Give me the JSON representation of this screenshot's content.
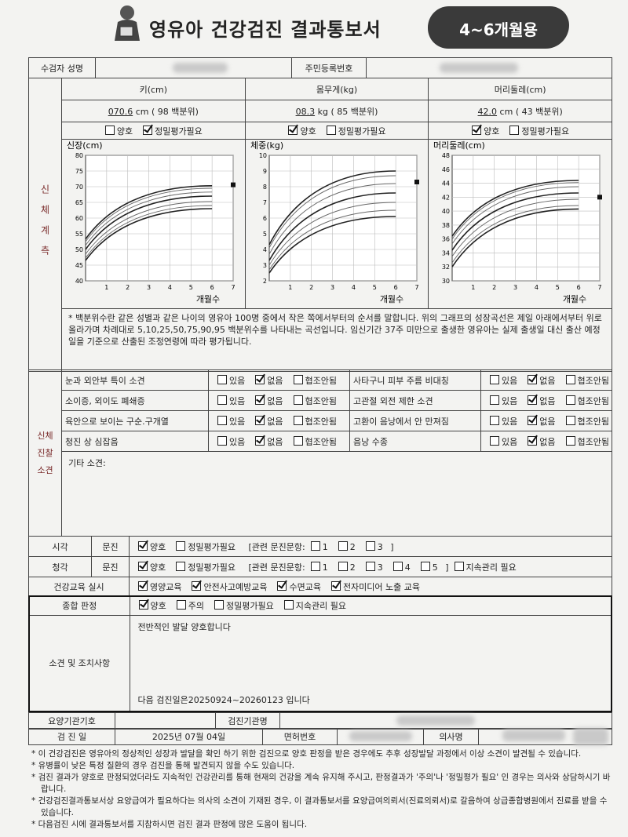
{
  "header": {
    "title": "영유아 건강검진 결과통보서",
    "badge": "4~6개월용"
  },
  "identity": {
    "name_label": "수검자 성명",
    "rrn_label": "주민등록번호"
  },
  "measurement": {
    "label": "신체계측",
    "items": [
      {
        "title": "키(cm)",
        "value": "070.6",
        "unit": "cm",
        "percentile": "( 98  백분위)",
        "options": [
          "양호",
          "정밀평가필요"
        ],
        "checked": [
          false,
          true
        ],
        "chart": {
          "y_label": "신장(cm)",
          "x_label": "개월수",
          "xlim": [
            0,
            7
          ],
          "xticks": [
            1,
            2,
            3,
            4,
            5,
            6,
            7
          ],
          "ylim": [
            40,
            80
          ],
          "yticks": [
            40,
            45,
            50,
            55,
            60,
            65,
            70,
            75,
            80
          ],
          "grid": true,
          "curve_x": [
            0,
            6
          ],
          "curves": [
            [
              46.5,
              63
            ],
            [
              47.3,
              64
            ],
            [
              48.5,
              65.3
            ],
            [
              50,
              67
            ],
            [
              51.3,
              68.3
            ],
            [
              52.5,
              69.5
            ],
            [
              53.3,
              70.3
            ]
          ],
          "marker": [
            7,
            70.6
          ]
        }
      },
      {
        "title": "몸무게(kg)",
        "value": "08.3",
        "unit": "kg",
        "percentile": "( 85  백분위)",
        "options": [
          "양호",
          "정밀평가필요"
        ],
        "checked": [
          true,
          false
        ],
        "chart": {
          "y_label": "체중(kg)",
          "x_label": "개월수",
          "xlim": [
            0,
            7
          ],
          "xticks": [
            1,
            2,
            3,
            4,
            5,
            6,
            7
          ],
          "ylim": [
            2,
            10
          ],
          "yticks": [
            2,
            3,
            4,
            5,
            6,
            7,
            8,
            9,
            10
          ],
          "grid": true,
          "curve_x": [
            0,
            6
          ],
          "curves": [
            [
              2.5,
              6.1
            ],
            [
              2.7,
              6.5
            ],
            [
              3,
              7
            ],
            [
              3.3,
              7.6
            ],
            [
              3.7,
              8.2
            ],
            [
              4.1,
              8.7
            ],
            [
              4.3,
              9
            ]
          ],
          "marker": [
            7,
            8.3
          ]
        }
      },
      {
        "title": "머리둘레(cm)",
        "value": "42.0",
        "unit": "cm",
        "percentile": "( 43  백분위)",
        "options": [
          "양호",
          "정밀평가필요"
        ],
        "checked": [
          true,
          false
        ],
        "chart": {
          "y_label": "머리둘레(cm)",
          "x_label": "개월수",
          "xlim": [
            0,
            7
          ],
          "xticks": [
            1,
            2,
            3,
            4,
            5,
            6,
            7
          ],
          "ylim": [
            30,
            48
          ],
          "yticks": [
            30,
            32,
            34,
            36,
            38,
            40,
            42,
            44,
            46,
            48
          ],
          "grid": true,
          "curve_x": [
            0,
            6
          ],
          "curves": [
            [
              32,
              40.3
            ],
            [
              32.6,
              40.8
            ],
            [
              33.5,
              41.7
            ],
            [
              34.4,
              42.6
            ],
            [
              35.3,
              43.5
            ],
            [
              36,
              44.1
            ],
            [
              36.4,
              44.4
            ]
          ],
          "marker": [
            7,
            42.0
          ]
        }
      }
    ],
    "note": "* 백분위수란 같은 성별과 같은 나이의 영유아 100명 중에서 작은 쪽에서부터의 순서를 말합니다. 위의 그래프의 성장곡선은 제일 아래에서부터 위로 올라가며 차례대로 5,10,25,50,75,90,95 백분위수를 나타내는 곡선입니다. 임신기간 37주 미만으로 출생한 영유아는 실제 출생일 대신 출산 예정일을 기준으로 산출된 조정연령에 따라 평가됩니다."
  },
  "exam": {
    "label_lines": [
      "신체",
      "진찰",
      "소견"
    ],
    "rows": [
      [
        {
          "label": "눈과 외안부 특이 소견",
          "options": [
            "있음",
            "없음",
            "협조안됨"
          ],
          "checked": [
            false,
            true,
            false
          ]
        },
        {
          "label": "사타구니 피부 주름 비대칭",
          "options": [
            "있음",
            "없음",
            "협조안됨"
          ],
          "checked": [
            false,
            true,
            false
          ]
        }
      ],
      [
        {
          "label": "소이증, 외이도 폐쇄증",
          "options": [
            "있음",
            "없음",
            "협조안됨"
          ],
          "checked": [
            false,
            true,
            false
          ]
        },
        {
          "label": "고관절 외전 제한 소견",
          "options": [
            "있음",
            "없음",
            "협조안됨"
          ],
          "checked": [
            false,
            true,
            false
          ]
        }
      ],
      [
        {
          "label": "육안으로 보이는 구순.구개열",
          "options": [
            "있음",
            "없음",
            "협조안됨"
          ],
          "checked": [
            false,
            true,
            false
          ]
        },
        {
          "label": "고환이 음낭에서 안 만져짐",
          "options": [
            "있음",
            "없음",
            "협조안됨"
          ],
          "checked": [
            false,
            true,
            false
          ]
        }
      ],
      [
        {
          "label": "청진 상 심잡음",
          "options": [
            "있음",
            "없음",
            "협조안됨"
          ],
          "checked": [
            false,
            true,
            false
          ]
        },
        {
          "label": "음낭 수종",
          "options": [
            "있음",
            "없음",
            "협조안됨"
          ],
          "checked": [
            false,
            true,
            false
          ]
        }
      ]
    ],
    "other_label": "기타 소견:"
  },
  "vision": {
    "label": "시각",
    "method": "문진",
    "options": [
      "양호",
      "정밀평가필요"
    ],
    "checked": [
      true,
      false
    ],
    "related_label": "[관련 문진문항:",
    "related": [
      "1",
      "2",
      "3"
    ],
    "related_checked": [
      false,
      false,
      false
    ],
    "close": "]"
  },
  "hearing": {
    "label": "청각",
    "method": "문진",
    "options": [
      "양호",
      "정밀평가필요"
    ],
    "checked": [
      true,
      false
    ],
    "related_label": "[관련 문진문항:",
    "related": [
      "1",
      "2",
      "3",
      "4",
      "5"
    ],
    "related_checked": [
      false,
      false,
      false,
      false,
      false
    ],
    "close": "]",
    "extra": [
      "지속관리 필요"
    ],
    "extra_checked": [
      false
    ]
  },
  "education": {
    "label": "건강교육 실시",
    "options": [
      "영양교육",
      "안전사고예방교육",
      "수면교육",
      "전자미디어 노출 교육"
    ],
    "checked": [
      true,
      true,
      true,
      true
    ]
  },
  "judgment": {
    "label": "종합 판정",
    "options": [
      "양호",
      "주의",
      "정밀평가필요",
      "지속관리 필요"
    ],
    "checked": [
      true,
      false,
      false,
      false
    ]
  },
  "opinion": {
    "label": "소견 및 조치사항",
    "text": "전반적인 발달 양호합니다",
    "next": "다음 검진일은20250924~20260123 입니다"
  },
  "footer_table": {
    "institution_code_label": "요양기관기호",
    "institution_name_label": "검진기관명",
    "exam_date_label": "검 진 일",
    "exam_date": "2025년 07월 04일",
    "license_label": "면허번호",
    "doctor_label": "의사명"
  },
  "notes": [
    "* 이 건강검진은 영유아의 정상적인 성장과 발달을 확인 하기 위한 검진으로 양호 판정을 받은 경우에도 추후 성장발달 과정에서 이상 소견이 발견될 수 있습니다.",
    "* 유병률이 낮은 특정 질환의 경우 검진을 통해 발견되지 않을 수도 있습니다.",
    "* 검진 결과가 양호로 판정되었더라도 지속적인 건강관리를 통해 현재의 건강을 계속 유지해 주시고, 판정결과가 '주의'나 '정밀평가 필요' 인 경우는 의사와 상담하시기 바랍니다.",
    "* 건강검진결과통보서상 요양급여가 필요하다는 의사의 소견이 기재된 경우, 이 결과통보서를 요양급여의뢰서(진료의뢰서)로 갈음하여 상급종합병원에서 진료를 받을 수 있습니다.",
    "* 다음검진 시에 결과통보서를 지참하시면 검진 결과 판정에 많은 도움이 됩니다."
  ]
}
